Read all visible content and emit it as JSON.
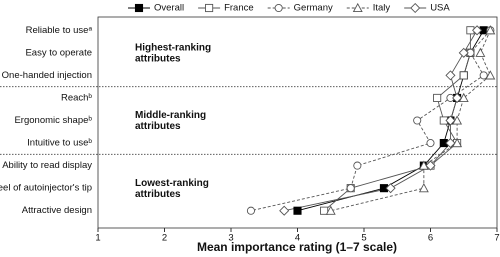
{
  "chart_data": {
    "type": "dot-line",
    "orientation": "horizontal",
    "categories": [
      "Reliable to useᵃ",
      "Easy to operate",
      "One-handed injection",
      "Reachᵇ",
      "Ergonomic shapeᵇ",
      "Intuitive to useᵇ",
      "Ability to read display",
      "Feel of autoinjector's tip",
      "Attractive design"
    ],
    "annotations": [
      {
        "lines": [
          "Highest-ranking",
          "attributes"
        ]
      },
      {
        "lines": [
          "Middle-ranking",
          "attributes"
        ]
      },
      {
        "lines": [
          "Lowest-ranking",
          "attributes"
        ]
      }
    ],
    "series": [
      {
        "name": "Overall",
        "color": "#000000",
        "marker": "square",
        "filled": true,
        "dashed": false,
        "values": [
          6.8,
          6.6,
          6.5,
          6.4,
          6.3,
          6.2,
          5.9,
          5.3,
          4.0
        ]
      },
      {
        "name": "France",
        "color": "#555555",
        "marker": "square",
        "filled": false,
        "dashed": false,
        "values": [
          6.6,
          6.6,
          6.5,
          6.1,
          6.2,
          6.4,
          6.0,
          4.8,
          4.4
        ]
      },
      {
        "name": "Germany",
        "color": "#555555",
        "marker": "circle",
        "filled": false,
        "dashed": true,
        "values": [
          6.9,
          6.6,
          6.8,
          6.3,
          5.8,
          6.0,
          4.9,
          4.8,
          3.3
        ]
      },
      {
        "name": "Italy",
        "color": "#555555",
        "marker": "triangle",
        "filled": false,
        "dashed": true,
        "values": [
          6.9,
          6.75,
          6.9,
          6.5,
          6.4,
          6.4,
          5.9,
          5.9,
          4.5
        ]
      },
      {
        "name": "USA",
        "color": "#555555",
        "marker": "diamond",
        "filled": false,
        "dashed": false,
        "values": [
          6.7,
          6.5,
          6.3,
          6.4,
          6.3,
          6.3,
          6.0,
          5.4,
          3.8
        ]
      }
    ],
    "xlabel": "Mean importance rating (1–7 scale)",
    "xlim": [
      1,
      7
    ],
    "xticks": [
      1,
      2,
      3,
      4,
      5,
      6,
      7
    ]
  }
}
